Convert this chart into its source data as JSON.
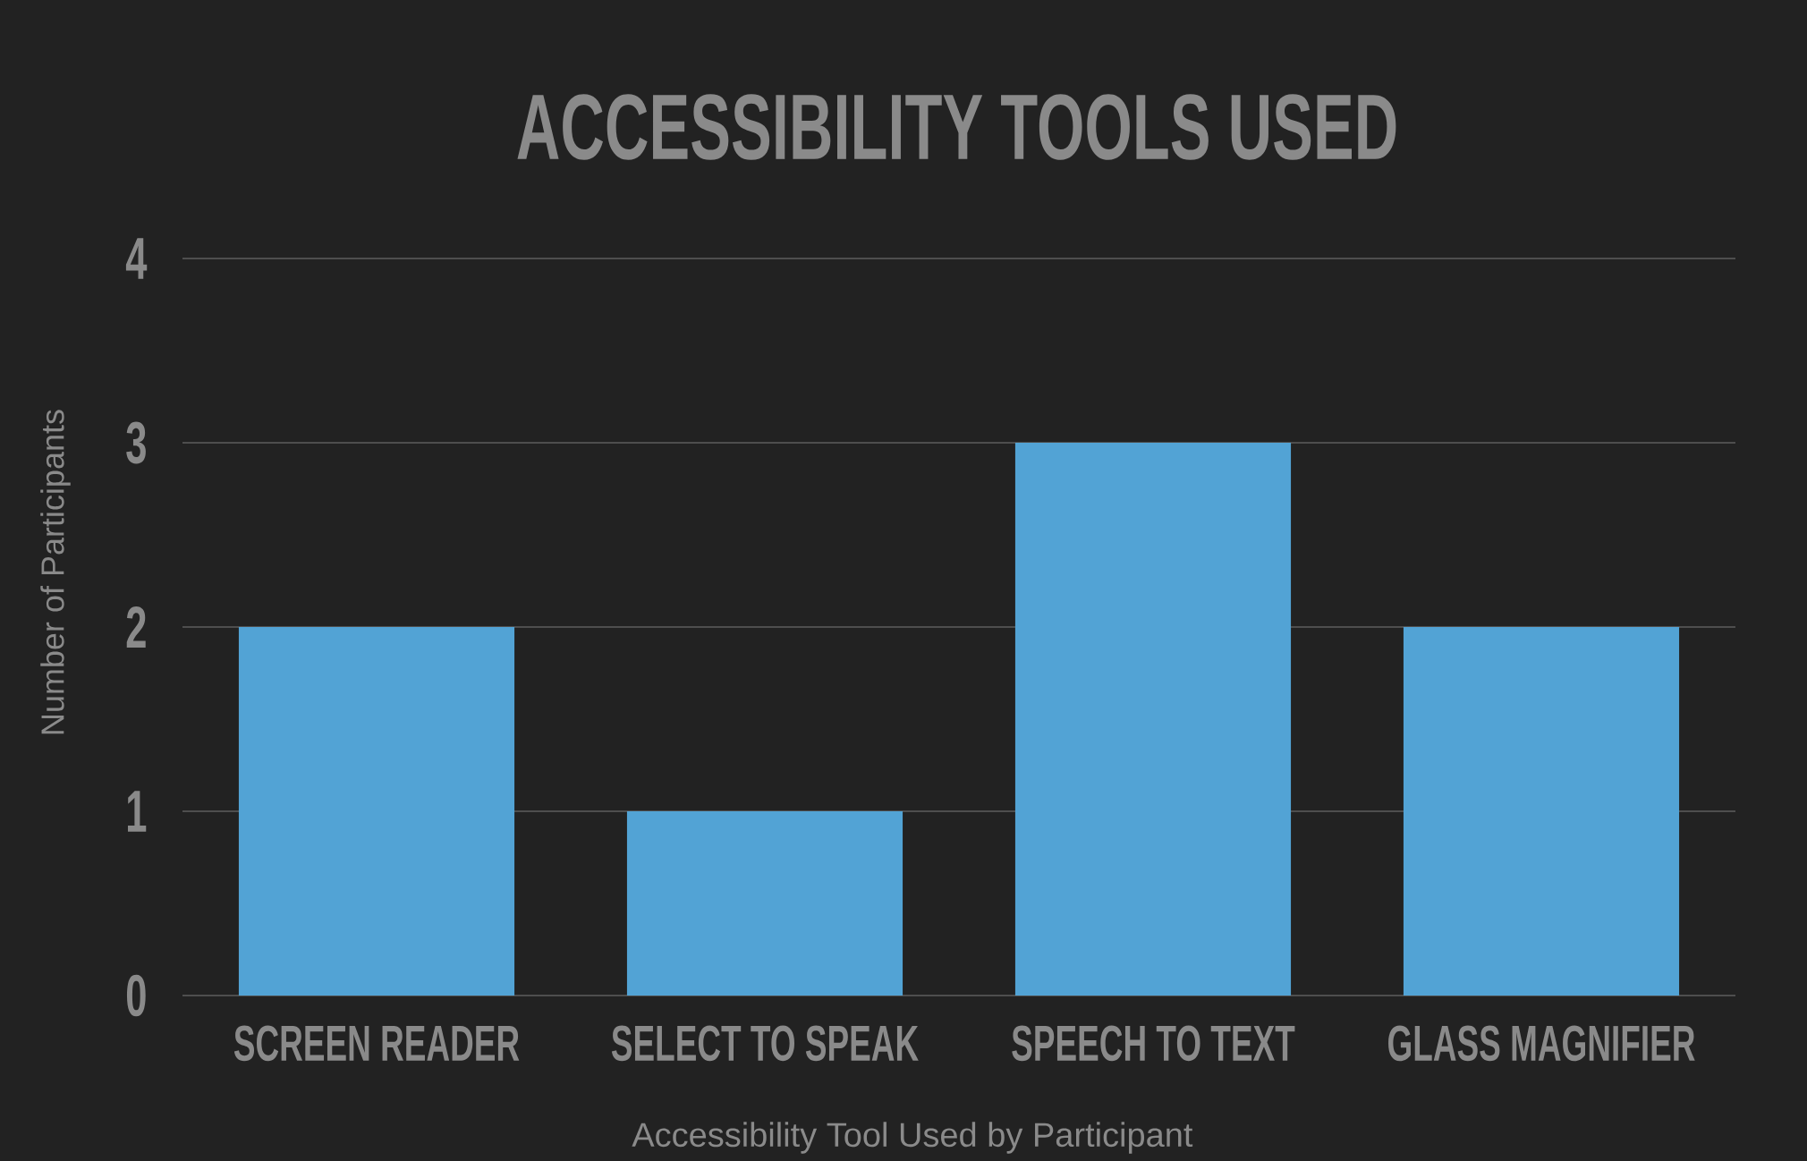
{
  "chart_data": {
    "type": "bar",
    "title": "ACCESSIBILITY TOOLS USED",
    "xlabel": "Accessibility Tool Used by Participant",
    "ylabel": "Number of Participants",
    "categories": [
      "SCREEN READER",
      "SELECT TO SPEAK",
      "SPEECH TO TEXT",
      "GLASS MAGNIFIER"
    ],
    "values": [
      2,
      1,
      3,
      2
    ],
    "color": "#52a3d5",
    "ylim": [
      0,
      4
    ],
    "yticks": [
      0,
      1,
      2,
      3,
      4
    ],
    "grid": "y"
  }
}
